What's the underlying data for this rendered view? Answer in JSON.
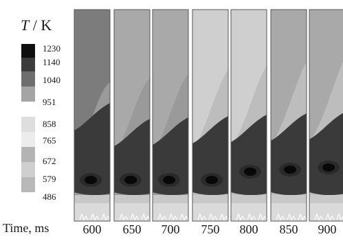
{
  "legend": {
    "symbol": "T",
    "unit": "/ K",
    "ticks": [
      "1230",
      "1140",
      "1040",
      "951",
      "858",
      "765",
      "672",
      "579",
      "486"
    ]
  },
  "axis": {
    "label": "Time, ms"
  },
  "chart_data": {
    "type": "heatmap",
    "title": "",
    "xlabel": "Time, ms",
    "x": [
      600,
      650,
      700,
      750,
      800,
      850,
      900
    ],
    "x_labels": [
      "600",
      "650",
      "700",
      "750",
      "800",
      "850",
      "900"
    ],
    "colorbar": {
      "label": "T / K",
      "levels": [
        1230,
        1140,
        1040,
        951,
        858,
        765,
        672,
        579,
        486
      ],
      "colors": [
        "#0f0f0f",
        "#3c3c3c",
        "#6e6e6e",
        "#a4a4a4",
        "#dedede",
        "#ececec",
        "#b4b4b4",
        "#cfcfcf",
        "#b8b8b8"
      ]
    },
    "panels": [
      {
        "time": "600",
        "background_K": 1040,
        "hot_core_K": 1230
      },
      {
        "time": "650",
        "background_K": 951,
        "hot_core_K": 1230
      },
      {
        "time": "700",
        "background_K": 951,
        "hot_core_K": 1230
      },
      {
        "time": "750",
        "background_K": 858,
        "hot_core_K": 1230
      },
      {
        "time": "800",
        "background_K": 858,
        "hot_core_K": 1230
      },
      {
        "time": "850",
        "background_K": 951,
        "hot_core_K": 1230
      },
      {
        "time": "900",
        "background_K": 951,
        "hot_core_K": 1230
      }
    ]
  }
}
